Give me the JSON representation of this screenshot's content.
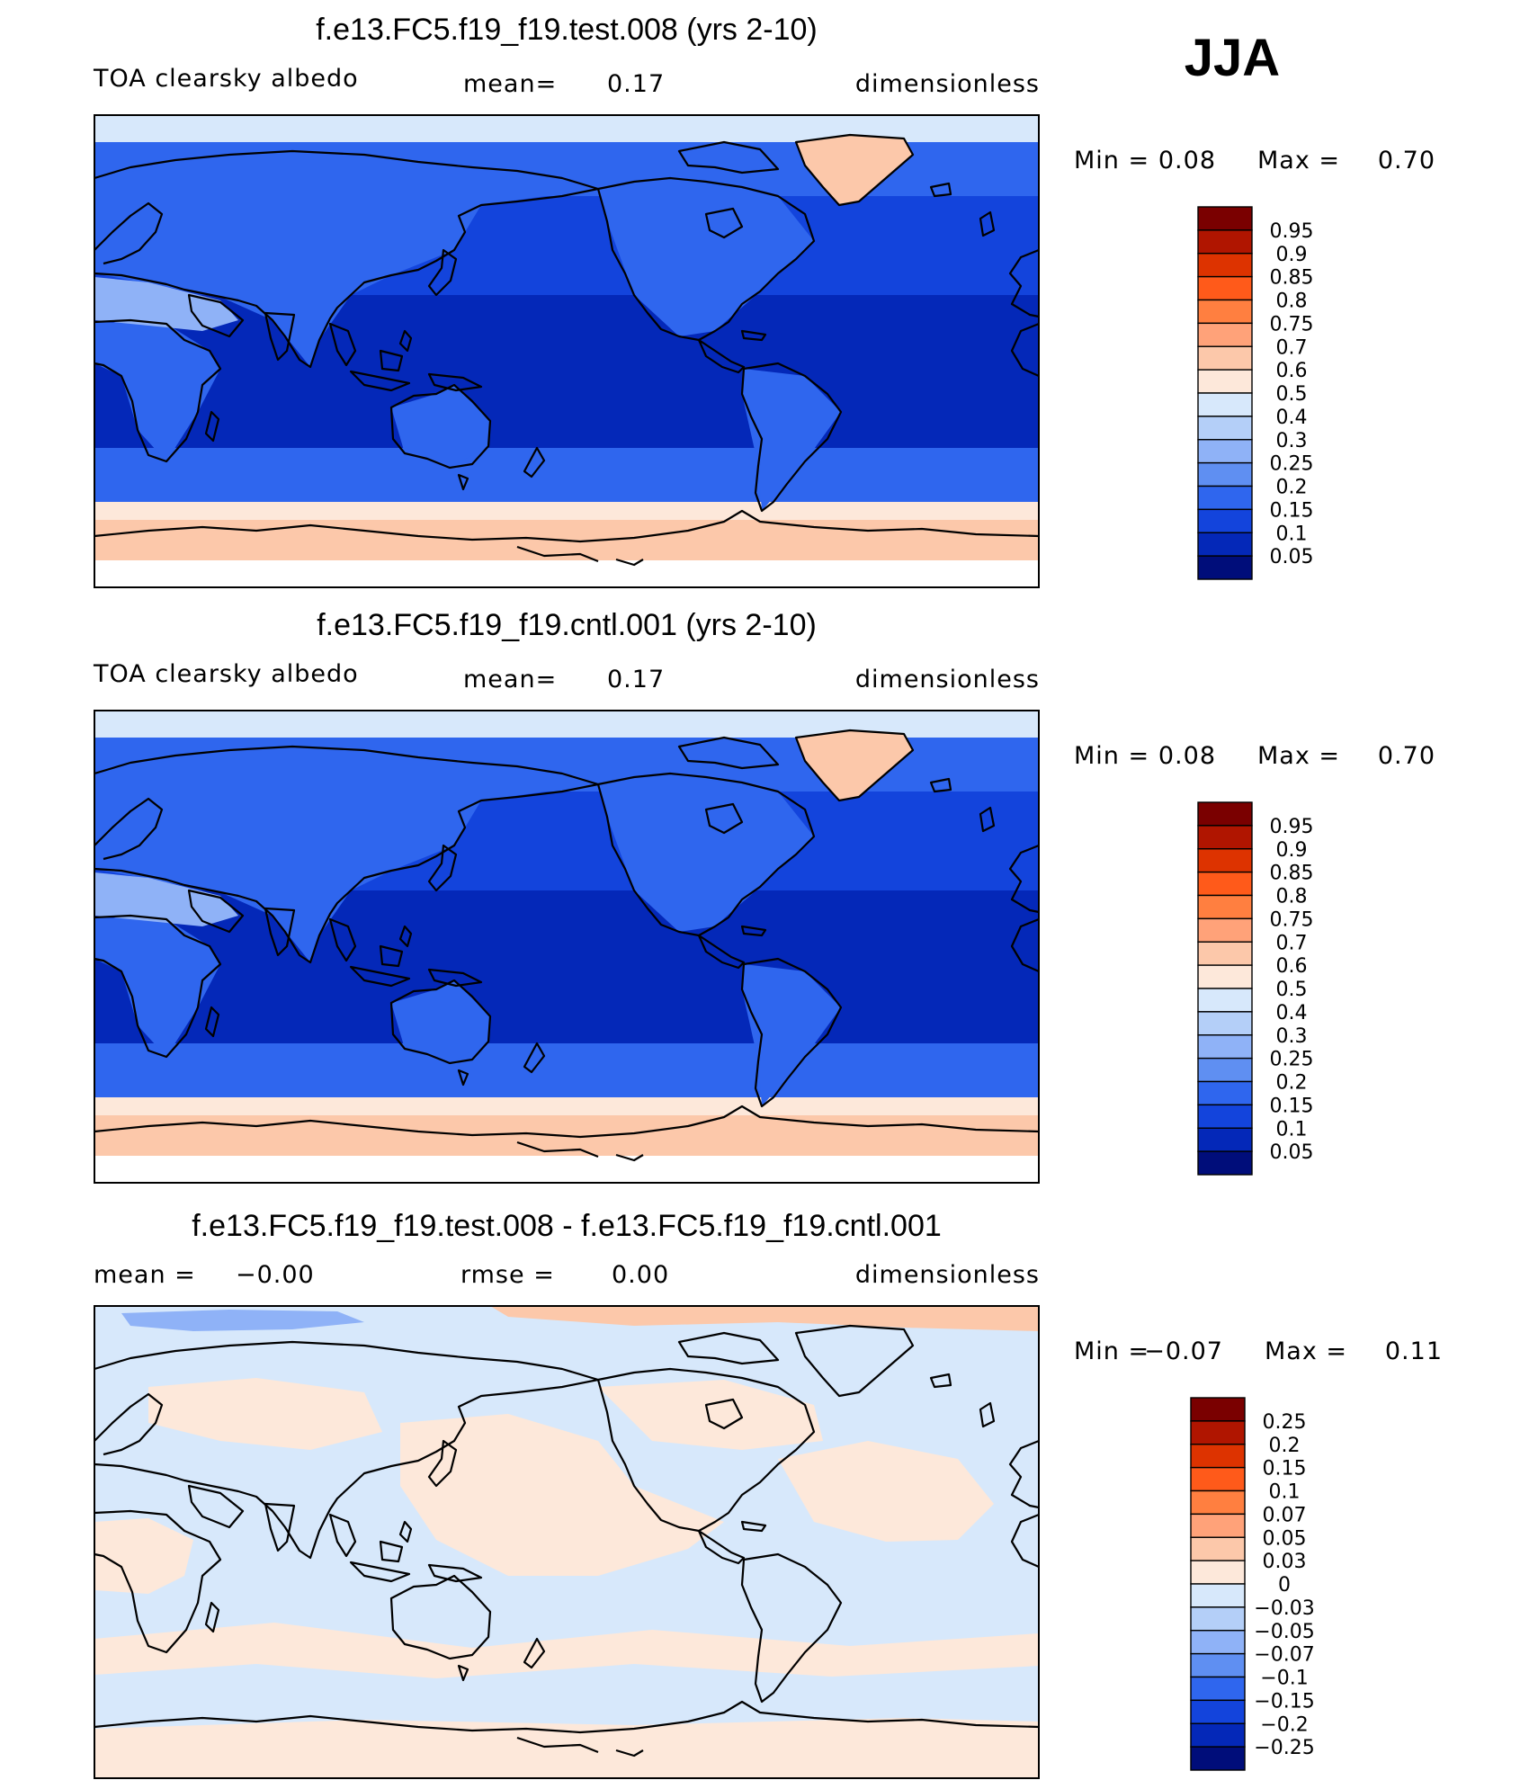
{
  "season": "JJA",
  "panels": [
    {
      "title": "f.e13.FC5.f19_f19.test.008 (yrs 2-10)",
      "left_label": "TOA clearsky albedo",
      "mid_label": "mean=",
      "mid_value": "0.17",
      "right_label": "dimensionless",
      "min_label": "Min =",
      "min_value": "0.08",
      "max_label": "Max =",
      "max_value": "0.70",
      "scale": {
        "labels": [
          "0.95",
          "0.9",
          "0.85",
          "0.8",
          "0.75",
          "0.7",
          "0.6",
          "0.5",
          "0.4",
          "0.3",
          "0.25",
          "0.2",
          "0.15",
          "0.1",
          "0.05"
        ],
        "colors": [
          "#7a0000",
          "#b01500",
          "#dd3300",
          "#ff5a1a",
          "#ff7f40",
          "#ffa279",
          "#fcc8aa",
          "#fde8da",
          "#d7e8fb",
          "#b4cff8",
          "#8fb2f7",
          "#5f8ff2",
          "#2f66ee",
          "#1344dc",
          "#0428b8",
          "#000d7a"
        ]
      },
      "map_fill": {
        "north_pole_band": "#d7e8fb",
        "arctic_band": "#2f66ee",
        "midlat_band": "#1344dc",
        "tropics_band": "#0428b8",
        "southern_ocean_band": "#2f66ee",
        "antarctic_edge_band": "#fde8da",
        "antarctic_band": "#fcc8aa",
        "south_pole_band": "#ffffff",
        "land": "#2f66ee",
        "desert": "#8fb2f7",
        "greenland": "#fcc8aa"
      }
    },
    {
      "title": "f.e13.FC5.f19_f19.cntl.001 (yrs 2-10)",
      "left_label": "TOA clearsky albedo",
      "mid_label": "mean=",
      "mid_value": "0.17",
      "right_label": "dimensionless",
      "min_label": "Min =",
      "min_value": "0.08",
      "max_label": "Max =",
      "max_value": "0.70",
      "scale": {
        "labels": [
          "0.95",
          "0.9",
          "0.85",
          "0.8",
          "0.75",
          "0.7",
          "0.6",
          "0.5",
          "0.4",
          "0.3",
          "0.25",
          "0.2",
          "0.15",
          "0.1",
          "0.05"
        ],
        "colors": [
          "#7a0000",
          "#b01500",
          "#dd3300",
          "#ff5a1a",
          "#ff7f40",
          "#ffa279",
          "#fcc8aa",
          "#fde8da",
          "#d7e8fb",
          "#b4cff8",
          "#8fb2f7",
          "#5f8ff2",
          "#2f66ee",
          "#1344dc",
          "#0428b8",
          "#000d7a"
        ]
      },
      "map_fill": {
        "north_pole_band": "#d7e8fb",
        "arctic_band": "#2f66ee",
        "midlat_band": "#1344dc",
        "tropics_band": "#0428b8",
        "southern_ocean_band": "#2f66ee",
        "antarctic_edge_band": "#fde8da",
        "antarctic_band": "#fcc8aa",
        "south_pole_band": "#ffffff",
        "land": "#2f66ee",
        "desert": "#8fb2f7",
        "greenland": "#fcc8aa"
      }
    },
    {
      "title": "f.e13.FC5.f19_f19.test.008 - f.e13.FC5.f19_f19.cntl.001",
      "left_label": "mean =",
      "left_value": "−0.00",
      "mid_label": "rmse =",
      "mid_value": "0.00",
      "right_label": "dimensionless",
      "min_label": "Min =",
      "min_value": "−0.07",
      "max_label": "Max =",
      "max_value": "0.11",
      "scale": {
        "labels": [
          "0.25",
          "0.2",
          "0.15",
          "0.1",
          "0.07",
          "0.05",
          "0.03",
          "0",
          "−0.03",
          "−0.05",
          "−0.07",
          "−0.1",
          "−0.15",
          "−0.2",
          "−0.25"
        ],
        "colors": [
          "#7a0000",
          "#b01500",
          "#dd3300",
          "#ff5a1a",
          "#ff7f40",
          "#ffa279",
          "#fcc8aa",
          "#fde8da",
          "#d7e8fb",
          "#b4cff8",
          "#8fb2f7",
          "#5f8ff2",
          "#2f66ee",
          "#1344dc",
          "#0428b8",
          "#000d7a"
        ]
      },
      "map_fill": {
        "background": "#d7e8fb",
        "positive": "#fde8da",
        "strong_positive": "#fcc8aa",
        "strong_negative": "#8fb2f7"
      }
    }
  ]
}
